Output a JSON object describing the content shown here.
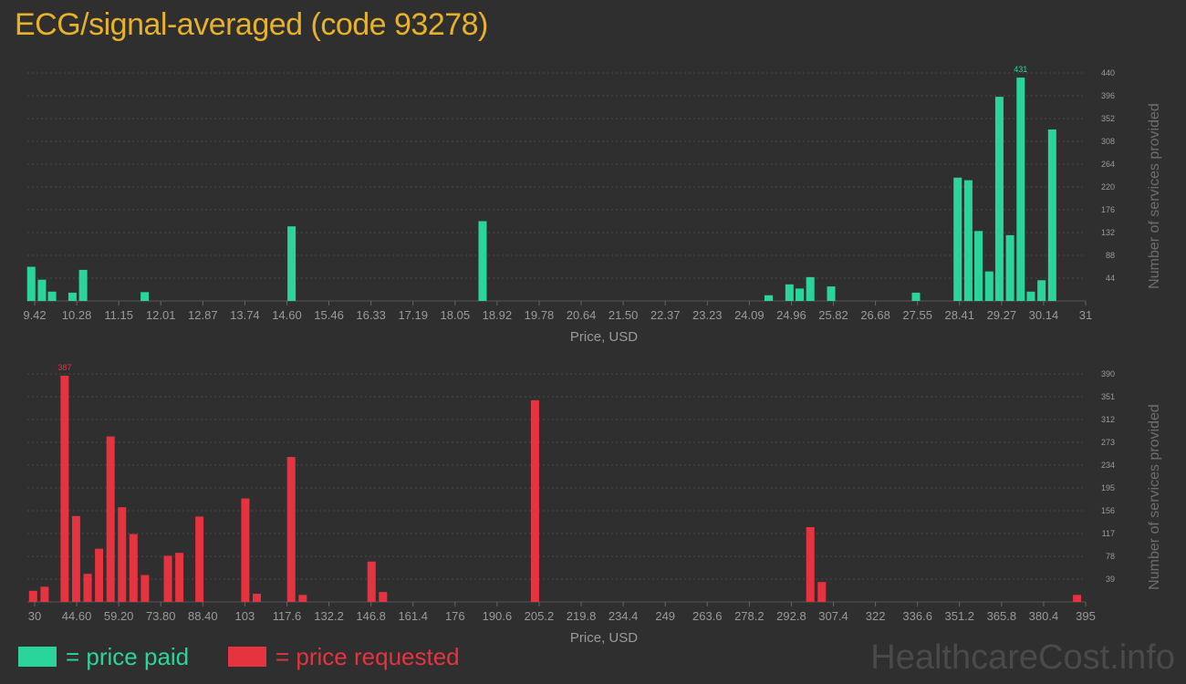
{
  "page": {
    "title": "ECG/signal-averaged (code 93278)",
    "watermark": "HealthcareCost.info"
  },
  "legend": {
    "paid_label": "= price paid",
    "requested_label": "= price requested"
  },
  "colors": {
    "paid": "#2bd49a",
    "requested": "#e5333f",
    "axis_text": "#9a9a9a",
    "grid": "#4a4a4a"
  },
  "chart_data": [
    {
      "type": "bar",
      "series": [
        {
          "name": "price paid"
        }
      ],
      "xlabel": "Price, USD",
      "ylabel": "Number of services provided",
      "xlim": [
        9.27,
        31.1
      ],
      "ylim": [
        0,
        440
      ],
      "grid": true,
      "x_ticks": [
        "9.42",
        "10.28",
        "11.15",
        "12.01",
        "12.87",
        "13.74",
        "14.60",
        "15.46",
        "16.33",
        "17.19",
        "18.05",
        "18.92",
        "19.78",
        "20.64",
        "21.50",
        "22.37",
        "23.23",
        "24.09",
        "24.96",
        "25.82",
        "26.68",
        "27.55",
        "28.41",
        "29.27",
        "30.14",
        "31"
      ],
      "y_ticks": [
        "44",
        "88",
        "132",
        "176",
        "220",
        "264",
        "308",
        "352",
        "396",
        "440"
      ],
      "max_label": "431",
      "bars": [
        {
          "x": 9.35,
          "y": 66
        },
        {
          "x": 9.57,
          "y": 41
        },
        {
          "x": 9.78,
          "y": 18
        },
        {
          "x": 10.2,
          "y": 16
        },
        {
          "x": 10.42,
          "y": 60
        },
        {
          "x": 11.69,
          "y": 17
        },
        {
          "x": 14.72,
          "y": 144
        },
        {
          "x": 18.66,
          "y": 154
        },
        {
          "x": 24.56,
          "y": 11
        },
        {
          "x": 24.99,
          "y": 32
        },
        {
          "x": 25.2,
          "y": 24
        },
        {
          "x": 25.42,
          "y": 46
        },
        {
          "x": 25.85,
          "y": 28
        },
        {
          "x": 27.6,
          "y": 16
        },
        {
          "x": 28.46,
          "y": 238
        },
        {
          "x": 28.68,
          "y": 233
        },
        {
          "x": 28.89,
          "y": 135
        },
        {
          "x": 29.11,
          "y": 57
        },
        {
          "x": 29.32,
          "y": 394
        },
        {
          "x": 29.54,
          "y": 127
        },
        {
          "x": 29.76,
          "y": 431
        },
        {
          "x": 29.97,
          "y": 18
        },
        {
          "x": 30.19,
          "y": 40
        },
        {
          "x": 30.41,
          "y": 331
        }
      ]
    },
    {
      "type": "bar",
      "series": [
        {
          "name": "price requested"
        }
      ],
      "xlabel": "Price, USD",
      "ylabel": "Number of services provided",
      "xlim": [
        29,
        398
      ],
      "ylim": [
        0,
        390
      ],
      "grid": true,
      "x_ticks": [
        "30",
        "44.60",
        "59.20",
        "73.80",
        "88.40",
        "103",
        "117.6",
        "132.2",
        "146.8",
        "161.4",
        "176",
        "190.6",
        "205.2",
        "219.8",
        "234.4",
        "249",
        "263.6",
        "278.2",
        "292.8",
        "307.4",
        "322",
        "336.6",
        "351.2",
        "365.8",
        "380.4",
        "395"
      ],
      "y_ticks": [
        "39",
        "78",
        "117",
        "156",
        "195",
        "234",
        "273",
        "312",
        "351",
        "390"
      ],
      "max_label": "387",
      "bars": [
        {
          "x": 31,
          "y": 19
        },
        {
          "x": 35,
          "y": 26
        },
        {
          "x": 42,
          "y": 387
        },
        {
          "x": 46,
          "y": 147
        },
        {
          "x": 50,
          "y": 48
        },
        {
          "x": 54,
          "y": 91
        },
        {
          "x": 58,
          "y": 283
        },
        {
          "x": 62,
          "y": 162
        },
        {
          "x": 66,
          "y": 116
        },
        {
          "x": 70,
          "y": 46
        },
        {
          "x": 78,
          "y": 79
        },
        {
          "x": 82,
          "y": 84
        },
        {
          "x": 89,
          "y": 146
        },
        {
          "x": 105,
          "y": 177
        },
        {
          "x": 109,
          "y": 14
        },
        {
          "x": 121,
          "y": 248
        },
        {
          "x": 125,
          "y": 12
        },
        {
          "x": 149,
          "y": 69
        },
        {
          "x": 153,
          "y": 17
        },
        {
          "x": 206,
          "y": 345
        },
        {
          "x": 302,
          "y": 128
        },
        {
          "x": 306,
          "y": 34
        },
        {
          "x": 395,
          "y": 12
        }
      ]
    }
  ]
}
